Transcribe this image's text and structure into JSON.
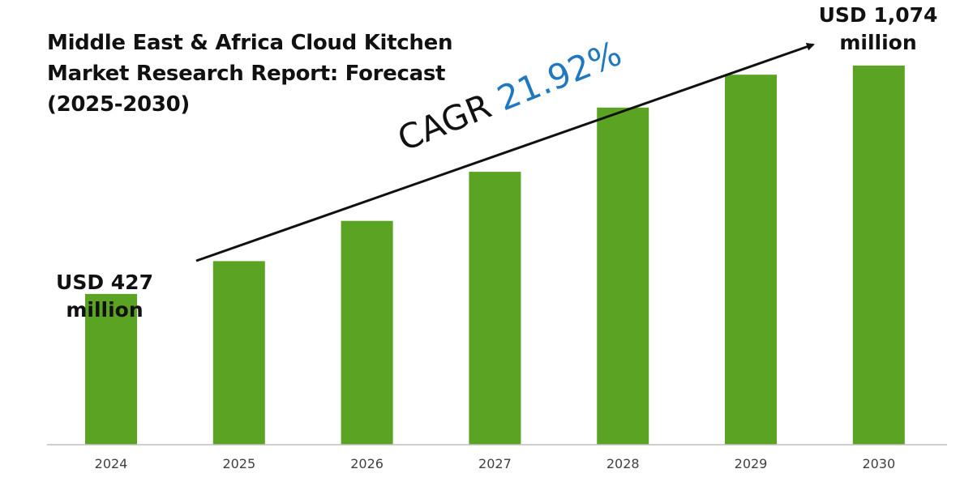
{
  "title_lines": [
    "Middle East & Africa Cloud Kitchen",
    "Market Research Report: Forecast",
    "(2025-2030)"
  ],
  "start_label": {
    "line1": "USD 427",
    "line2": "million"
  },
  "end_label": {
    "line1": "USD 1,074",
    "line2": "million"
  },
  "cagr": {
    "label": "CAGR",
    "value": "21.92%"
  },
  "colors": {
    "bar": "#5ba423",
    "cagr_value": "#1f78c0",
    "axis": "#bfbfbf",
    "text": "#111111"
  },
  "chart_data": {
    "type": "bar",
    "title": "Middle East & Africa Cloud Kitchen Market Research Report: Forecast (2025-2030)",
    "categories": [
      "2024",
      "2025",
      "2026",
      "2027",
      "2028",
      "2029",
      "2030"
    ],
    "series": [
      {
        "values": [
          427,
          520,
          634,
          773,
          955,
          1048,
          1074
        ]
      }
    ],
    "ylim": [
      0,
      1200
    ],
    "grid": false,
    "legend": "none",
    "annotations": [
      "USD 427 million",
      "USD 1,074 million",
      "CAGR 21.92%"
    ]
  }
}
